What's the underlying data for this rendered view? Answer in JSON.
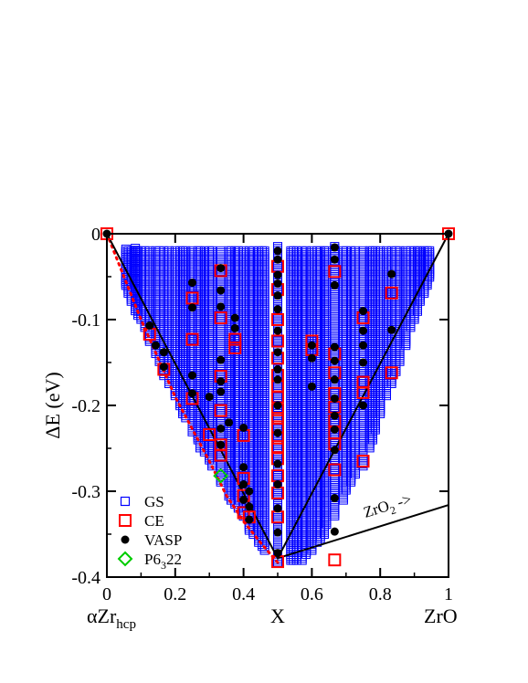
{
  "chart_data": {
    "type": "scatter",
    "xlabel": "X",
    "ylabel": "ΔE (eV)",
    "xlim": [
      0,
      1
    ],
    "ylim": [
      -0.4,
      0
    ],
    "x_ticks": [
      0,
      0.2,
      0.4,
      0.6,
      0.8,
      1
    ],
    "x_tick_labels": [
      "0",
      "0.2",
      "0.4",
      "0.6",
      "0.8",
      "1"
    ],
    "y_ticks": [
      0,
      -0.1,
      -0.2,
      -0.3,
      -0.4
    ],
    "y_tick_labels": [
      "0",
      "-0.1",
      "-0.2",
      "-0.3",
      "-0.4"
    ],
    "endpoint_labels": {
      "left": {
        "base": "αZr",
        "sub": "hcp"
      },
      "right": "ZrO"
    },
    "annotation": {
      "base": "ZrO",
      "sub": "2",
      "suffix": " ->"
    },
    "legend": {
      "position": "bottom-left",
      "entries": [
        {
          "key": "gs",
          "label": "GS"
        },
        {
          "key": "ce",
          "label": "CE"
        },
        {
          "key": "vasp",
          "label": "VASP"
        },
        {
          "key": "p6322",
          "label_base": "P6",
          "label_sub": "3",
          "label_tail": "22"
        }
      ]
    },
    "colors": {
      "gs": "#0000ff",
      "ce": "#ff0000",
      "vasp": "#000000",
      "p6322": "#00cc00",
      "hull": "#000000",
      "dotted": "#ff0000"
    },
    "hull_line": [
      [
        0,
        0
      ],
      [
        0.5,
        -0.378
      ],
      [
        1,
        0
      ]
    ],
    "zro2_line": [
      [
        0.5,
        -0.378
      ],
      [
        1,
        -0.316
      ]
    ],
    "dotted_line": [
      [
        0,
        0
      ],
      [
        0.1,
        -0.1
      ],
      [
        0.2,
        -0.19
      ],
      [
        0.3,
        -0.265
      ],
      [
        0.35,
        -0.305
      ],
      [
        0.4,
        -0.335
      ],
      [
        0.45,
        -0.36
      ],
      [
        0.5,
        -0.383
      ]
    ],
    "gs_columns": [
      {
        "x": 0.0556,
        "ymin": -0.06,
        "ymax": -0.018
      },
      {
        "x": 0.0625,
        "ymin": -0.07,
        "ymax": -0.02
      },
      {
        "x": 0.0714,
        "ymin": -0.08,
        "ymax": -0.02
      },
      {
        "x": 0.0833,
        "ymin": -0.09,
        "ymax": -0.017
      },
      {
        "x": 0.0909,
        "ymin": -0.095,
        "ymax": -0.02
      },
      {
        "x": 0.1,
        "ymin": -0.1,
        "ymax": -0.02
      },
      {
        "x": 0.1111,
        "ymin": -0.11,
        "ymax": -0.02
      },
      {
        "x": 0.125,
        "ymin": -0.125,
        "ymax": -0.02
      },
      {
        "x": 0.1429,
        "ymin": -0.14,
        "ymax": -0.02
      },
      {
        "x": 0.1538,
        "ymin": -0.15,
        "ymax": -0.02
      },
      {
        "x": 0.1667,
        "ymin": -0.165,
        "ymax": -0.02
      },
      {
        "x": 0.1818,
        "ymin": -0.175,
        "ymax": -0.02
      },
      {
        "x": 0.2,
        "ymin": -0.19,
        "ymax": -0.02
      },
      {
        "x": 0.2143,
        "ymin": -0.2,
        "ymax": -0.02
      },
      {
        "x": 0.2222,
        "ymin": -0.21,
        "ymax": -0.02
      },
      {
        "x": 0.2308,
        "ymin": -0.215,
        "ymax": -0.02
      },
      {
        "x": 0.25,
        "ymin": -0.232,
        "ymax": -0.02
      },
      {
        "x": 0.2667,
        "ymin": -0.24,
        "ymax": -0.02
      },
      {
        "x": 0.2727,
        "ymin": -0.25,
        "ymax": -0.02
      },
      {
        "x": 0.2857,
        "ymin": -0.255,
        "ymax": -0.02
      },
      {
        "x": 0.3,
        "ymin": -0.265,
        "ymax": -0.02
      },
      {
        "x": 0.3077,
        "ymin": -0.27,
        "ymax": -0.02
      },
      {
        "x": 0.3333,
        "ymin": -0.29,
        "ymax": -0.02
      },
      {
        "x": 0.3571,
        "ymin": -0.305,
        "ymax": -0.02
      },
      {
        "x": 0.3636,
        "ymin": -0.31,
        "ymax": -0.02
      },
      {
        "x": 0.375,
        "ymin": -0.315,
        "ymax": -0.02
      },
      {
        "x": 0.3846,
        "ymin": -0.32,
        "ymax": -0.02
      },
      {
        "x": 0.4,
        "ymin": -0.33,
        "ymax": -0.02
      },
      {
        "x": 0.4167,
        "ymin": -0.345,
        "ymax": -0.02
      },
      {
        "x": 0.4286,
        "ymin": -0.35,
        "ymax": -0.02
      },
      {
        "x": 0.4444,
        "ymin": -0.36,
        "ymax": -0.02
      },
      {
        "x": 0.4545,
        "ymin": -0.365,
        "ymax": -0.02
      },
      {
        "x": 0.4615,
        "ymin": -0.37,
        "ymax": -0.02
      },
      {
        "x": 0.5,
        "ymin": -0.382,
        "ymax": -0.015
      },
      {
        "x": 0.5385,
        "ymin": -0.38,
        "ymax": -0.02
      },
      {
        "x": 0.5455,
        "ymin": -0.38,
        "ymax": -0.02
      },
      {
        "x": 0.5556,
        "ymin": -0.38,
        "ymax": -0.02
      },
      {
        "x": 0.5714,
        "ymin": -0.38,
        "ymax": -0.02
      },
      {
        "x": 0.5833,
        "ymin": -0.375,
        "ymax": -0.02
      },
      {
        "x": 0.6,
        "ymin": -0.37,
        "ymax": -0.02
      },
      {
        "x": 0.6154,
        "ymin": -0.36,
        "ymax": -0.02
      },
      {
        "x": 0.625,
        "ymin": -0.355,
        "ymax": -0.02
      },
      {
        "x": 0.6364,
        "ymin": -0.35,
        "ymax": -0.02
      },
      {
        "x": 0.6429,
        "ymin": -0.34,
        "ymax": -0.02
      },
      {
        "x": 0.6667,
        "ymin": -0.33,
        "ymax": -0.015
      },
      {
        "x": 0.6923,
        "ymin": -0.31,
        "ymax": -0.02
      },
      {
        "x": 0.7,
        "ymin": -0.3,
        "ymax": -0.02
      },
      {
        "x": 0.7143,
        "ymin": -0.29,
        "ymax": -0.02
      },
      {
        "x": 0.7273,
        "ymin": -0.28,
        "ymax": -0.02
      },
      {
        "x": 0.75,
        "ymin": -0.27,
        "ymax": -0.02
      },
      {
        "x": 0.7692,
        "ymin": -0.25,
        "ymax": -0.02
      },
      {
        "x": 0.7778,
        "ymin": -0.24,
        "ymax": -0.02
      },
      {
        "x": 0.7857,
        "ymin": -0.23,
        "ymax": -0.02
      },
      {
        "x": 0.8,
        "ymin": -0.21,
        "ymax": -0.02
      },
      {
        "x": 0.8182,
        "ymin": -0.19,
        "ymax": -0.02
      },
      {
        "x": 0.8333,
        "ymin": -0.175,
        "ymax": -0.02
      },
      {
        "x": 0.8462,
        "ymin": -0.16,
        "ymax": -0.02
      },
      {
        "x": 0.8571,
        "ymin": -0.15,
        "ymax": -0.02
      },
      {
        "x": 0.875,
        "ymin": -0.13,
        "ymax": -0.02
      },
      {
        "x": 0.8889,
        "ymin": -0.11,
        "ymax": -0.02
      },
      {
        "x": 0.9,
        "ymin": -0.1,
        "ymax": -0.02
      },
      {
        "x": 0.9091,
        "ymin": -0.09,
        "ymax": -0.02
      },
      {
        "x": 0.9167,
        "ymin": -0.08,
        "ymax": -0.02
      },
      {
        "x": 0.9286,
        "ymin": -0.07,
        "ymax": -0.02
      },
      {
        "x": 0.9375,
        "ymin": -0.06,
        "ymax": -0.02
      },
      {
        "x": 0.9444,
        "ymin": -0.05,
        "ymax": -0.02
      }
    ],
    "ce_points": [
      [
        0,
        0
      ],
      [
        1,
        0
      ],
      [
        0.125,
        -0.117
      ],
      [
        0.1667,
        -0.158
      ],
      [
        0.25,
        -0.075
      ],
      [
        0.25,
        -0.123
      ],
      [
        0.25,
        -0.192
      ],
      [
        0.3,
        -0.234
      ],
      [
        0.3333,
        -0.043
      ],
      [
        0.3333,
        -0.098
      ],
      [
        0.3333,
        -0.166
      ],
      [
        0.3333,
        -0.206
      ],
      [
        0.3333,
        -0.246
      ],
      [
        0.3333,
        -0.258
      ],
      [
        0.375,
        -0.123
      ],
      [
        0.375,
        -0.133
      ],
      [
        0.4,
        -0.235
      ],
      [
        0.4,
        -0.285
      ],
      [
        0.4,
        -0.305
      ],
      [
        0.4,
        -0.325
      ],
      [
        0.4167,
        -0.33
      ],
      [
        0.5,
        -0.038
      ],
      [
        0.5,
        -0.065
      ],
      [
        0.5,
        -0.1
      ],
      [
        0.5,
        -0.125
      ],
      [
        0.5,
        -0.145
      ],
      [
        0.5,
        -0.165
      ],
      [
        0.5,
        -0.178
      ],
      [
        0.5,
        -0.19
      ],
      [
        0.5,
        -0.205
      ],
      [
        0.5,
        -0.215
      ],
      [
        0.5,
        -0.225
      ],
      [
        0.5,
        -0.238
      ],
      [
        0.5,
        -0.248
      ],
      [
        0.5,
        -0.262
      ],
      [
        0.5,
        -0.282
      ],
      [
        0.5,
        -0.302
      ],
      [
        0.5,
        -0.33
      ],
      [
        0.5,
        -0.382
      ],
      [
        0.6,
        -0.125
      ],
      [
        0.6,
        -0.135
      ],
      [
        0.6667,
        -0.044
      ],
      [
        0.6667,
        -0.14
      ],
      [
        0.6667,
        -0.162
      ],
      [
        0.6667,
        -0.186
      ],
      [
        0.6667,
        -0.202
      ],
      [
        0.6667,
        -0.218
      ],
      [
        0.6667,
        -0.232
      ],
      [
        0.6667,
        -0.245
      ],
      [
        0.6667,
        -0.275
      ],
      [
        0.6667,
        -0.38
      ],
      [
        0.75,
        -0.098
      ],
      [
        0.75,
        -0.173
      ],
      [
        0.75,
        -0.185
      ],
      [
        0.75,
        -0.265
      ],
      [
        0.8333,
        -0.069
      ],
      [
        0.8333,
        -0.162
      ]
    ],
    "vasp_points": [
      [
        0,
        0
      ],
      [
        1,
        0
      ],
      [
        0.125,
        -0.107
      ],
      [
        0.1429,
        -0.13
      ],
      [
        0.1667,
        -0.138
      ],
      [
        0.1667,
        -0.155
      ],
      [
        0.25,
        -0.057
      ],
      [
        0.25,
        -0.086
      ],
      [
        0.25,
        -0.165
      ],
      [
        0.25,
        -0.186
      ],
      [
        0.3,
        -0.19
      ],
      [
        0.3333,
        -0.04
      ],
      [
        0.3333,
        -0.066
      ],
      [
        0.3333,
        -0.085
      ],
      [
        0.3333,
        -0.147
      ],
      [
        0.3333,
        -0.172
      ],
      [
        0.3333,
        -0.184
      ],
      [
        0.3333,
        -0.227
      ],
      [
        0.3333,
        -0.246
      ],
      [
        0.3571,
        -0.22
      ],
      [
        0.375,
        -0.098
      ],
      [
        0.375,
        -0.11
      ],
      [
        0.4,
        -0.226
      ],
      [
        0.4,
        -0.272
      ],
      [
        0.4,
        -0.292
      ],
      [
        0.4,
        -0.31
      ],
      [
        0.4167,
        -0.3
      ],
      [
        0.4167,
        -0.318
      ],
      [
        0.4167,
        -0.333
      ],
      [
        0.5,
        -0.02
      ],
      [
        0.5,
        -0.03
      ],
      [
        0.5,
        -0.048
      ],
      [
        0.5,
        -0.058
      ],
      [
        0.5,
        -0.072
      ],
      [
        0.5,
        -0.088
      ],
      [
        0.5,
        -0.113
      ],
      [
        0.5,
        -0.138
      ],
      [
        0.5,
        -0.158
      ],
      [
        0.5,
        -0.17
      ],
      [
        0.5,
        -0.2
      ],
      [
        0.5,
        -0.232
      ],
      [
        0.5,
        -0.268
      ],
      [
        0.5,
        -0.292
      ],
      [
        0.5,
        -0.32
      ],
      [
        0.5,
        -0.348
      ],
      [
        0.5,
        -0.372
      ],
      [
        0.6,
        -0.13
      ],
      [
        0.6,
        -0.145
      ],
      [
        0.6,
        -0.178
      ],
      [
        0.6667,
        -0.016
      ],
      [
        0.6667,
        -0.03
      ],
      [
        0.6667,
        -0.06
      ],
      [
        0.6667,
        -0.132
      ],
      [
        0.6667,
        -0.148
      ],
      [
        0.6667,
        -0.17
      ],
      [
        0.6667,
        -0.192
      ],
      [
        0.6667,
        -0.212
      ],
      [
        0.6667,
        -0.228
      ],
      [
        0.6667,
        -0.252
      ],
      [
        0.6667,
        -0.308
      ],
      [
        0.6667,
        -0.347
      ],
      [
        0.75,
        -0.09
      ],
      [
        0.75,
        -0.113
      ],
      [
        0.75,
        -0.13
      ],
      [
        0.75,
        -0.15
      ],
      [
        0.75,
        -0.2
      ],
      [
        0.8333,
        -0.047
      ],
      [
        0.8333,
        -0.112
      ]
    ],
    "p6322_points": [
      [
        0.3333,
        -0.282
      ]
    ]
  }
}
